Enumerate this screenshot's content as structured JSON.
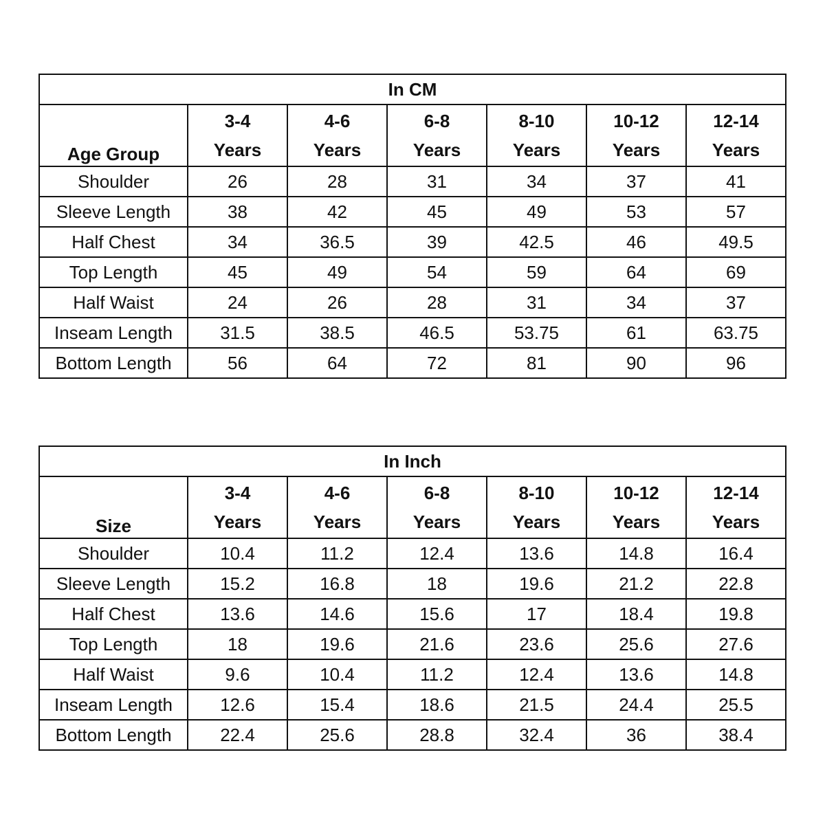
{
  "tables": [
    {
      "id": "table-cm",
      "title": "In CM",
      "corner_label": "Age Group",
      "columns": [
        {
          "range": "3-4",
          "unit": "Years"
        },
        {
          "range": "4-6",
          "unit": "Years"
        },
        {
          "range": "6-8",
          "unit": "Years"
        },
        {
          "range": "8-10",
          "unit": "Years"
        },
        {
          "range": "10-12",
          "unit": "Years"
        },
        {
          "range": "12-14",
          "unit": "Years"
        }
      ],
      "rows": [
        {
          "label": "Shoulder",
          "values": [
            "26",
            "28",
            "31",
            "34",
            "37",
            "41"
          ]
        },
        {
          "label": "Sleeve Length",
          "values": [
            "38",
            "42",
            "45",
            "49",
            "53",
            "57"
          ]
        },
        {
          "label": "Half Chest",
          "values": [
            "34",
            "36.5",
            "39",
            "42.5",
            "46",
            "49.5"
          ]
        },
        {
          "label": "Top Length",
          "values": [
            "45",
            "49",
            "54",
            "59",
            "64",
            "69"
          ]
        },
        {
          "label": "Half Waist",
          "values": [
            "24",
            "26",
            "28",
            "31",
            "34",
            "37"
          ]
        },
        {
          "label": "Inseam Length",
          "values": [
            "31.5",
            "38.5",
            "46.5",
            "53.75",
            "61",
            "63.75"
          ]
        },
        {
          "label": "Bottom Length",
          "values": [
            "56",
            "64",
            "72",
            "81",
            "90",
            "96"
          ]
        }
      ]
    },
    {
      "id": "table-inch",
      "title": "In Inch",
      "corner_label": "Size",
      "columns": [
        {
          "range": "3-4",
          "unit": "Years"
        },
        {
          "range": "4-6",
          "unit": "Years"
        },
        {
          "range": "6-8",
          "unit": "Years"
        },
        {
          "range": "8-10",
          "unit": "Years"
        },
        {
          "range": "10-12",
          "unit": "Years"
        },
        {
          "range": "12-14",
          "unit": "Years"
        }
      ],
      "rows": [
        {
          "label": "Shoulder",
          "values": [
            "10.4",
            "11.2",
            "12.4",
            "13.6",
            "14.8",
            "16.4"
          ]
        },
        {
          "label": "Sleeve Length",
          "values": [
            "15.2",
            "16.8",
            "18",
            "19.6",
            "21.2",
            "22.8"
          ]
        },
        {
          "label": "Half Chest",
          "values": [
            "13.6",
            "14.6",
            "15.6",
            "17",
            "18.4",
            "19.8"
          ]
        },
        {
          "label": "Top Length",
          "values": [
            "18",
            "19.6",
            "21.6",
            "23.6",
            "25.6",
            "27.6"
          ]
        },
        {
          "label": "Half Waist",
          "values": [
            "9.6",
            "10.4",
            "11.2",
            "12.4",
            "13.6",
            "14.8"
          ]
        },
        {
          "label": "Inseam Length",
          "values": [
            "12.6",
            "15.4",
            "18.6",
            "21.5",
            "24.4",
            "25.5"
          ]
        },
        {
          "label": "Bottom Length",
          "values": [
            "22.4",
            "25.6",
            "28.8",
            "32.4",
            "36",
            "38.4"
          ]
        }
      ]
    }
  ]
}
